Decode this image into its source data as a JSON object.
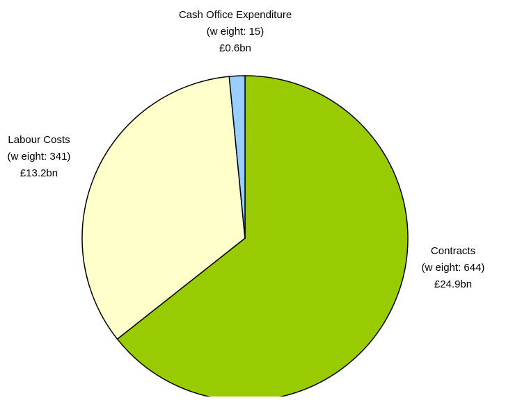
{
  "chart_data": {
    "type": "pie",
    "title": "",
    "start": "12 o'clock",
    "direction": "clockwise",
    "slices": [
      {
        "label": "Contracts",
        "weight_text": "(w eight: 644)",
        "value_text": "£24.9bn",
        "weight": 644,
        "value": 24.9,
        "color": "#99cc00"
      },
      {
        "label": "Labour Costs",
        "weight_text": "(w eight: 341)",
        "value_text": "£13.2bn",
        "weight": 341,
        "value": 13.2,
        "color": "#ffffcc"
      },
      {
        "label": "Cash Office Expenditure",
        "weight_text": "(w eight: 15)",
        "value_text": "£0.6bn",
        "weight": 15,
        "value": 0.6,
        "color": "#99ccff"
      }
    ],
    "edge_color": "#000000"
  }
}
